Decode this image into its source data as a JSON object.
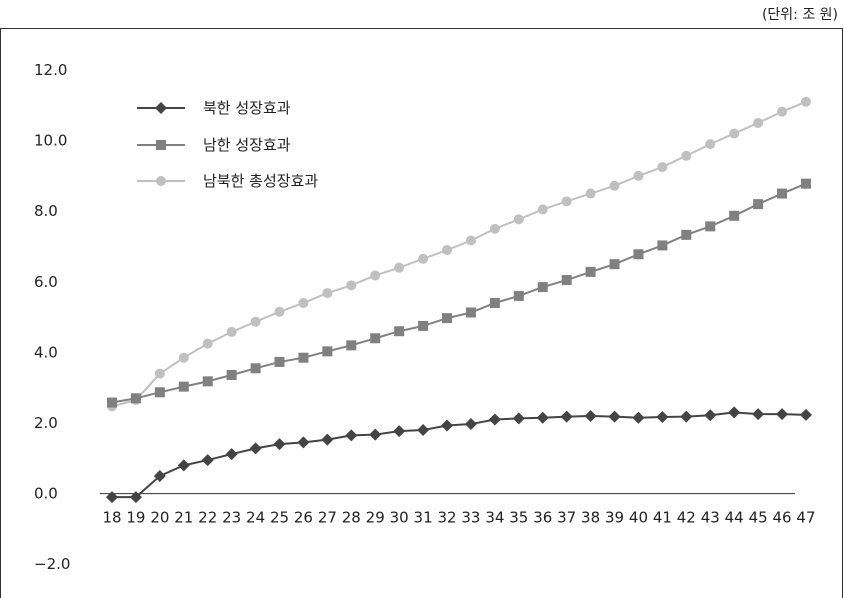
{
  "unit_label": "(단위: 조 원)",
  "chart_data": {
    "type": "line",
    "categories": [
      "18",
      "19",
      "20",
      "21",
      "22",
      "23",
      "24",
      "25",
      "26",
      "27",
      "28",
      "29",
      "30",
      "31",
      "32",
      "33",
      "34",
      "35",
      "36",
      "37",
      "38",
      "39",
      "40",
      "41",
      "42",
      "43",
      "44",
      "45",
      "46",
      "47"
    ],
    "ylim": [
      -2.0,
      12.0
    ],
    "yticks": [
      "12.0",
      "10.0",
      "8.0",
      "6.0",
      "4.0",
      "2.0",
      "0.0",
      "-2.0"
    ],
    "legend_position": "top-left",
    "grid": false,
    "series": [
      {
        "name": "북한 성장효과",
        "marker": "diamond",
        "color": "#444444",
        "values": [
          -0.1,
          -0.1,
          0.5,
          0.8,
          0.95,
          1.12,
          1.28,
          1.4,
          1.45,
          1.53,
          1.65,
          1.67,
          1.77,
          1.8,
          1.93,
          1.97,
          2.1,
          2.13,
          2.15,
          2.18,
          2.2,
          2.18,
          2.15,
          2.17,
          2.18,
          2.22,
          2.3,
          2.25,
          2.25,
          2.23
        ]
      },
      {
        "name": "남한 성장효과",
        "marker": "square",
        "color": "#808080",
        "values": [
          2.58,
          2.7,
          2.87,
          3.03,
          3.18,
          3.36,
          3.55,
          3.73,
          3.85,
          4.03,
          4.2,
          4.4,
          4.6,
          4.75,
          4.97,
          5.13,
          5.4,
          5.6,
          5.85,
          6.05,
          6.28,
          6.5,
          6.78,
          7.03,
          7.33,
          7.57,
          7.87,
          8.2,
          8.5,
          8.78
        ]
      },
      {
        "name": "남북한 총성장효과",
        "marker": "circle",
        "color": "#c0c0c0",
        "values": [
          2.47,
          2.65,
          3.4,
          3.85,
          4.25,
          4.58,
          4.87,
          5.15,
          5.4,
          5.68,
          5.9,
          6.18,
          6.4,
          6.65,
          6.9,
          7.17,
          7.5,
          7.77,
          8.05,
          8.28,
          8.5,
          8.72,
          9.0,
          9.25,
          9.57,
          9.9,
          10.2,
          10.5,
          10.82,
          11.1
        ]
      }
    ]
  }
}
